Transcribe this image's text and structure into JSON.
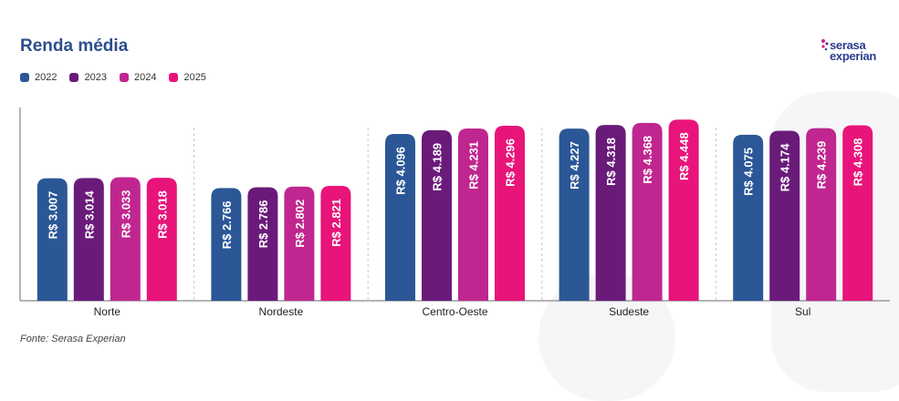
{
  "title": "Renda média",
  "source": "Fonte: Serasa Experian",
  "logo": {
    "line1": "serasa",
    "line2": "experian"
  },
  "colors": {
    "2022": "#2b5797",
    "2023": "#6a1b7a",
    "2024": "#c0268f",
    "2025": "#e8147a",
    "axis": "#6b6b6b",
    "divider": "#c8c8c8",
    "brand_text": "#2b3d8f",
    "title": "#2b4f8c"
  },
  "chart_data": {
    "type": "bar",
    "title": "Renda média",
    "xlabel": "",
    "ylabel": "",
    "legend_position": "top-left",
    "grid": false,
    "ylim": [
      0,
      4700
    ],
    "categories": [
      "Norte",
      "Nordeste",
      "Centro-Oeste",
      "Sudeste",
      "Sul"
    ],
    "series": [
      {
        "name": "2022",
        "values": [
          3007,
          2766,
          4096,
          4227,
          4075
        ],
        "labels": [
          "R$ 3.007",
          "R$ 2.766",
          "R$ 4.096",
          "R$ 4.227",
          "R$ 4.075"
        ]
      },
      {
        "name": "2023",
        "values": [
          3014,
          2786,
          4189,
          4318,
          4174
        ],
        "labels": [
          "R$ 3.014",
          "R$ 2.786",
          "R$ 4.189",
          "R$ 4.318",
          "R$ 4.174"
        ]
      },
      {
        "name": "2024",
        "values": [
          3033,
          2802,
          4231,
          4368,
          4239
        ],
        "labels": [
          "R$ 3.033",
          "R$ 2.802",
          "R$ 4.231",
          "R$ 4.368",
          "R$ 4.239"
        ]
      },
      {
        "name": "2025",
        "values": [
          3018,
          2821,
          4296,
          4448,
          4308
        ],
        "labels": [
          "R$ 3.018",
          "R$ 2.821",
          "R$ 4.296",
          "R$ 4.448",
          "R$ 4.308"
        ]
      }
    ]
  }
}
